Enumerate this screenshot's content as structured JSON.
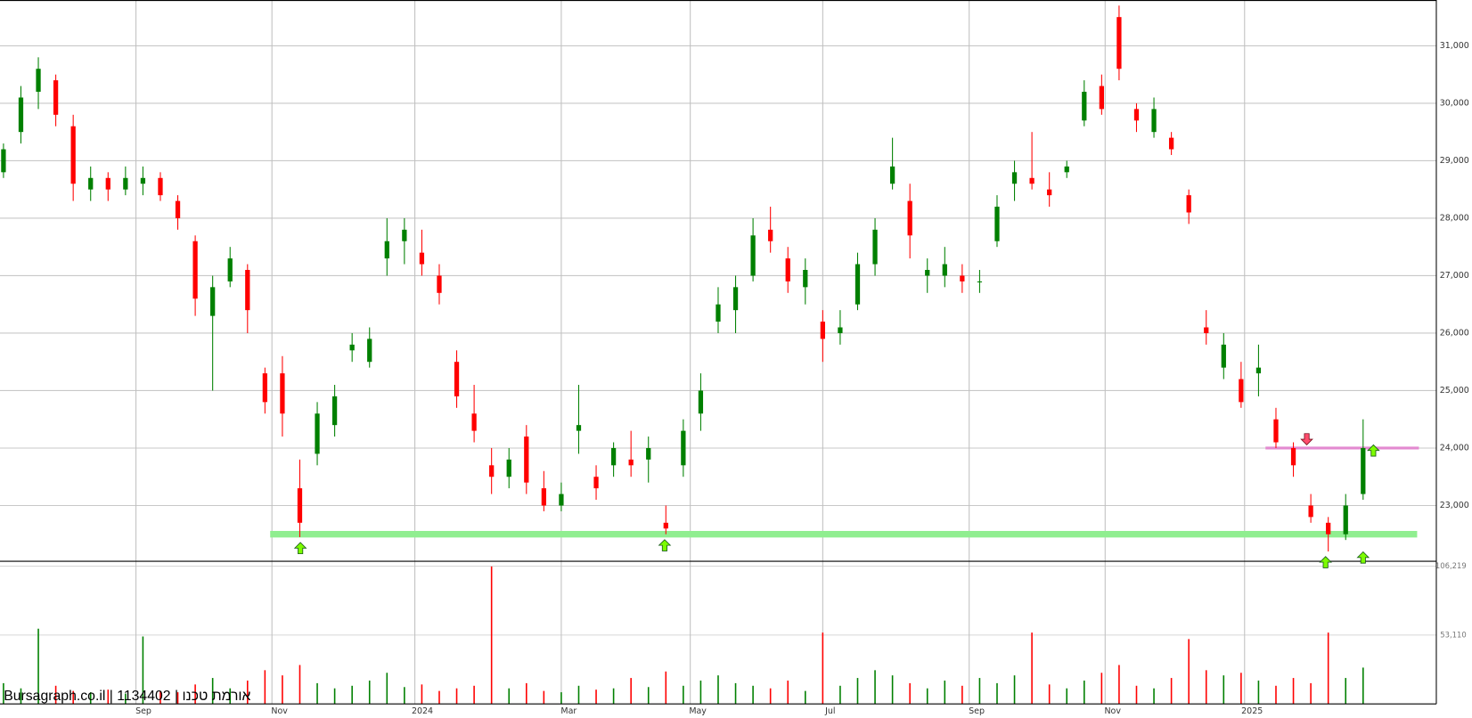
{
  "chart_data": {
    "type": "candlestick",
    "watermark": "Bursagraph.co.il | 1134402 | אורמת טכנו",
    "xlim": [
      0,
      412
    ],
    "xticks": [
      {
        "value": 39,
        "label": "Sep"
      },
      {
        "value": 78,
        "label": "Nov"
      },
      {
        "value": 119,
        "label": "2024"
      },
      {
        "value": 161,
        "label": "Mar"
      },
      {
        "value": 198,
        "label": "May"
      },
      {
        "value": 236,
        "label": "Jul"
      },
      {
        "value": 278,
        "label": "Sep"
      },
      {
        "value": 317,
        "label": "Nov"
      },
      {
        "value": 357,
        "label": "2025"
      }
    ],
    "ylim": [
      22030,
      31797
    ],
    "yticks": [
      {
        "value": 23000,
        "label": "23,000"
      },
      {
        "value": 24000,
        "label": "24,000"
      },
      {
        "value": 25000,
        "label": "25,000"
      },
      {
        "value": 26000,
        "label": "26,000"
      },
      {
        "value": 27000,
        "label": "27,000"
      },
      {
        "value": 28000,
        "label": "28,000"
      },
      {
        "value": 29000,
        "label": "29,000"
      },
      {
        "value": 30000,
        "label": "30,000"
      },
      {
        "value": 31000,
        "label": "31,000"
      }
    ],
    "volume_ylim": [
      0,
      110000
    ],
    "volume_yticks": [
      {
        "value": 53110,
        "label": "53,110"
      },
      {
        "value": 106219,
        "label": "106,219"
      }
    ],
    "grid": true,
    "up_color": "#008000",
    "down_color": "#ff0000",
    "x": [
      1,
      6,
      11,
      16,
      21,
      26,
      31,
      36,
      41,
      46,
      51,
      56,
      61,
      66,
      71,
      76,
      81,
      86,
      91,
      96,
      101,
      106,
      111,
      116,
      121,
      126,
      131,
      136,
      141,
      146,
      151,
      156,
      161,
      166,
      171,
      176,
      181,
      186,
      191,
      196,
      201,
      206,
      211,
      216,
      221,
      226,
      231,
      236,
      241,
      246,
      251,
      256,
      261,
      266,
      271,
      276,
      281,
      286,
      291,
      296,
      301,
      306,
      311,
      316,
      321,
      326,
      331,
      336,
      341,
      346,
      351,
      356,
      361,
      366,
      371,
      376,
      381,
      386,
      391
    ],
    "open": [
      28800,
      29500,
      30200,
      30400,
      29600,
      28500,
      28700,
      28500,
      28600,
      28700,
      28300,
      27600,
      26300,
      26900,
      27100,
      25300,
      25300,
      23300,
      23900,
      24400,
      25700,
      25500,
      27300,
      27600,
      27400,
      27000,
      25500,
      24600,
      23700,
      23500,
      24200,
      23300,
      23000,
      24300,
      23500,
      23700,
      23800,
      23800,
      22700,
      23700,
      24600,
      26200,
      26400,
      27000,
      27800,
      27300,
      26800,
      26200,
      26000,
      26500,
      27200,
      28600,
      28300,
      27000,
      27000,
      27000,
      26900,
      27600,
      28600,
      28700,
      28500,
      28800,
      29700,
      30300,
      31500,
      29900,
      29500,
      29400,
      28400,
      26100,
      25400,
      25200,
      25300,
      24500,
      24000,
      23000,
      22700,
      22500,
      23200
    ],
    "high": [
      29300,
      30300,
      30800,
      30500,
      29800,
      28900,
      28800,
      28900,
      28900,
      28800,
      28400,
      27700,
      27000,
      27500,
      27200,
      25400,
      25600,
      23800,
      24800,
      25100,
      26000,
      26100,
      28000,
      28000,
      27800,
      27200,
      25700,
      25100,
      24000,
      24000,
      24400,
      23600,
      23400,
      25100,
      23700,
      24100,
      24300,
      24200,
      23000,
      24500,
      25300,
      26800,
      27000,
      28000,
      28200,
      27500,
      27300,
      26400,
      26400,
      27400,
      28000,
      29400,
      28600,
      27300,
      27500,
      27200,
      27100,
      28400,
      29000,
      29500,
      28800,
      29000,
      30400,
      30500,
      31700,
      30000,
      30100,
      29500,
      28500,
      26400,
      26000,
      25500,
      25800,
      24700,
      24100,
      23200,
      22800,
      23200,
      24500
    ],
    "low": [
      28700,
      29300,
      29900,
      29600,
      28300,
      28300,
      28300,
      28400,
      28400,
      28300,
      27800,
      26300,
      25000,
      26800,
      26000,
      24600,
      24200,
      22450,
      23700,
      24200,
      25500,
      25400,
      27000,
      27200,
      27000,
      26500,
      24700,
      24100,
      23200,
      23300,
      23200,
      22900,
      22900,
      23900,
      23100,
      23500,
      23500,
      23400,
      22500,
      23500,
      24300,
      26000,
      26000,
      26900,
      27400,
      26700,
      26500,
      25500,
      25800,
      26400,
      27000,
      28500,
      27300,
      26700,
      26800,
      26700,
      26700,
      27500,
      28300,
      28500,
      28200,
      28700,
      29600,
      29800,
      30400,
      29500,
      29400,
      29100,
      27900,
      25800,
      25200,
      24700,
      24900,
      24000,
      23500,
      22700,
      22200,
      22400,
      23100
    ],
    "close": [
      29200,
      30100,
      30600,
      29800,
      28600,
      28700,
      28500,
      28700,
      28700,
      28400,
      28000,
      26600,
      26800,
      27300,
      26400,
      24800,
      24600,
      22700,
      24600,
      24900,
      25800,
      25900,
      27600,
      27800,
      27200,
      26700,
      24900,
      24300,
      23500,
      23800,
      23400,
      23000,
      23200,
      24400,
      23300,
      24000,
      23700,
      24000,
      22600,
      24300,
      25000,
      26500,
      26800,
      27700,
      27600,
      26900,
      27100,
      25900,
      26100,
      27200,
      27800,
      28900,
      27700,
      27100,
      27200,
      26900,
      26900,
      28200,
      28800,
      28600,
      28400,
      28900,
      30200,
      29900,
      30600,
      29700,
      29900,
      29200,
      28100,
      26000,
      25800,
      24800,
      25400,
      24100,
      23700,
      22800,
      22500,
      23000,
      24000
    ],
    "volume": [
      16000,
      12000,
      58000,
      14000,
      10000,
      9000,
      11000,
      8000,
      52000,
      10000,
      9000,
      15000,
      20000,
      12000,
      18000,
      26000,
      22000,
      30000,
      16000,
      12000,
      14000,
      18000,
      24000,
      13000,
      15000,
      10000,
      12000,
      14000,
      106000,
      12000,
      16000,
      10000,
      9000,
      14000,
      11000,
      12000,
      20000,
      13000,
      25000,
      14000,
      18000,
      22000,
      16000,
      14000,
      12000,
      18000,
      10000,
      55000,
      14000,
      20000,
      26000,
      22000,
      16000,
      12000,
      18000,
      14000,
      20000,
      16000,
      22000,
      55000,
      15000,
      12000,
      18000,
      24000,
      30000,
      14000,
      12000,
      20000,
      50000,
      26000,
      22000,
      24000,
      18000,
      14000,
      20000,
      16000,
      55000,
      20000,
      28000
    ],
    "hlines": [
      {
        "value": 22500,
        "color": "#90ee90",
        "from": 77.5,
        "to": 406.5
      },
      {
        "value": 24000,
        "color": "#e38ad0",
        "from": 363,
        "to": 407
      }
    ]
  }
}
